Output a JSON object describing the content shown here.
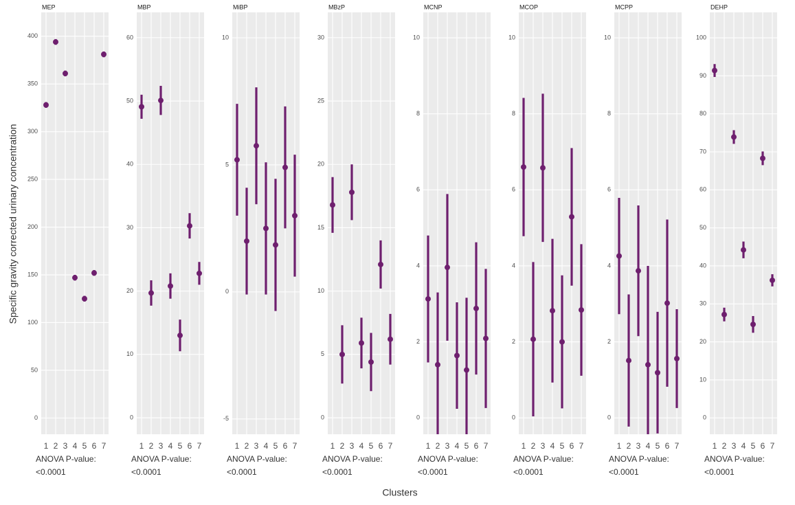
{
  "y_label": "Specific gravity corrected urinary concentration",
  "x_label": "Clusters",
  "chart_data": [
    {
      "type": "errorbar",
      "title": "MEP",
      "categories": [
        "1",
        "2",
        "3",
        "4",
        "5",
        "6",
        "7"
      ],
      "values": [
        328,
        394,
        361,
        147,
        125,
        152,
        381
      ],
      "errors": [
        3,
        3,
        3,
        3,
        3,
        3,
        3
      ],
      "ylim": [
        -17,
        425
      ],
      "yticks": [
        0,
        50,
        100,
        150,
        200,
        250,
        300,
        350,
        400
      ],
      "annotation": [
        "ANOVA P-value:",
        "<0.0001"
      ],
      "color": "#6e1f6e",
      "grid": true
    },
    {
      "type": "errorbar",
      "title": "MBP",
      "categories": [
        "1",
        "2",
        "3",
        "4",
        "5",
        "6",
        "7"
      ],
      "values": [
        49.1,
        19.7,
        50.1,
        20.8,
        13.0,
        30.3,
        22.8
      ],
      "errors": [
        1.9,
        2,
        2.3,
        2,
        2.5,
        2,
        1.8
      ],
      "ylim": [
        -2.6,
        64
      ],
      "yticks": [
        0,
        10,
        20,
        30,
        40,
        50,
        60
      ],
      "annotation": [
        "ANOVA P-value:",
        "<0.0001"
      ],
      "color": "#6e1f6e",
      "grid": true
    },
    {
      "type": "errorbar",
      "title": "MiBP",
      "categories": [
        "1",
        "2",
        "3",
        "4",
        "5",
        "6",
        "7"
      ],
      "values": [
        5.2,
        2.0,
        5.75,
        2.5,
        1.85,
        4.9,
        3.0
      ],
      "errors": [
        2.2,
        2.1,
        2.3,
        2.6,
        2.6,
        2.4,
        2.4
      ],
      "ylim": [
        -5.6,
        11
      ],
      "yticks": [
        -5,
        0,
        5,
        10
      ],
      "annotation": [
        "ANOVA P-value:",
        "<0.0001"
      ],
      "color": "#6e1f6e",
      "grid": true
    },
    {
      "type": "errorbar",
      "title": "MBzP",
      "categories": [
        "1",
        "2",
        "3",
        "4",
        "5",
        "6",
        "7"
      ],
      "values": [
        16.8,
        5.0,
        17.8,
        5.9,
        4.4,
        12.1,
        6.2
      ],
      "errors": [
        2.2,
        2.3,
        2.2,
        2,
        2.3,
        1.9,
        2
      ],
      "ylim": [
        -1.3,
        32
      ],
      "yticks": [
        0,
        5,
        10,
        15,
        20,
        25,
        30
      ],
      "annotation": [
        "ANOVA P-value:",
        "<0.0001"
      ],
      "color": "#6e1f6e",
      "grid": true
    },
    {
      "type": "errorbar",
      "title": "MCNP",
      "categories": [
        "1",
        "2",
        "3",
        "4",
        "5",
        "6",
        "7"
      ],
      "values": [
        3.13,
        1.4,
        3.96,
        1.64,
        1.26,
        2.88,
        2.09
      ],
      "errors": [
        1.67,
        1.9,
        1.93,
        1.4,
        1.9,
        1.74,
        1.83
      ],
      "ylim": [
        -0.43,
        10.67
      ],
      "yticks": [
        0,
        2,
        4,
        6,
        8,
        10
      ],
      "annotation": [
        "ANOVA P-value:",
        "<0.0001"
      ],
      "color": "#6e1f6e",
      "grid": true
    },
    {
      "type": "errorbar",
      "title": "MCOP",
      "categories": [
        "1",
        "2",
        "3",
        "4",
        "5",
        "6",
        "7"
      ],
      "values": [
        6.6,
        2.07,
        6.58,
        2.82,
        2.0,
        5.29,
        2.84
      ],
      "errors": [
        1.82,
        2.03,
        1.95,
        1.89,
        1.75,
        1.81,
        1.73
      ],
      "ylim": [
        -0.43,
        10.67
      ],
      "yticks": [
        0,
        2,
        4,
        6,
        8,
        10
      ],
      "annotation": [
        "ANOVA P-value:",
        "<0.0001"
      ],
      "color": "#6e1f6e",
      "grid": true
    },
    {
      "type": "errorbar",
      "title": "MCPP",
      "categories": [
        "1",
        "2",
        "3",
        "4",
        "5",
        "6",
        "7"
      ],
      "values": [
        4.26,
        1.51,
        3.87,
        1.4,
        1.19,
        3.02,
        1.56
      ],
      "errors": [
        1.53,
        1.74,
        1.72,
        2.6,
        1.6,
        2.2,
        1.3
      ],
      "ylim": [
        -0.43,
        10.67
      ],
      "yticks": [
        0,
        2,
        4,
        6,
        8,
        10
      ],
      "annotation": [
        "ANOVA P-value:",
        "<0.0001"
      ],
      "color": "#6e1f6e",
      "grid": true
    },
    {
      "type": "errorbar",
      "title": "DEHP",
      "categories": [
        "1",
        "2",
        "3",
        "4",
        "5",
        "6",
        "7"
      ],
      "values": [
        91.4,
        27.2,
        73.9,
        44.2,
        24.6,
        68.3,
        36.2
      ],
      "errors": [
        1.7,
        1.8,
        1.8,
        2.2,
        2.2,
        1.8,
        1.6
      ],
      "ylim": [
        -4.3,
        106.7
      ],
      "yticks": [
        0,
        10,
        20,
        30,
        40,
        50,
        60,
        70,
        80,
        90,
        100
      ],
      "annotation": [
        "ANOVA P-value:",
        "<0.0001"
      ],
      "color": "#6e1f6e",
      "grid": true
    }
  ]
}
